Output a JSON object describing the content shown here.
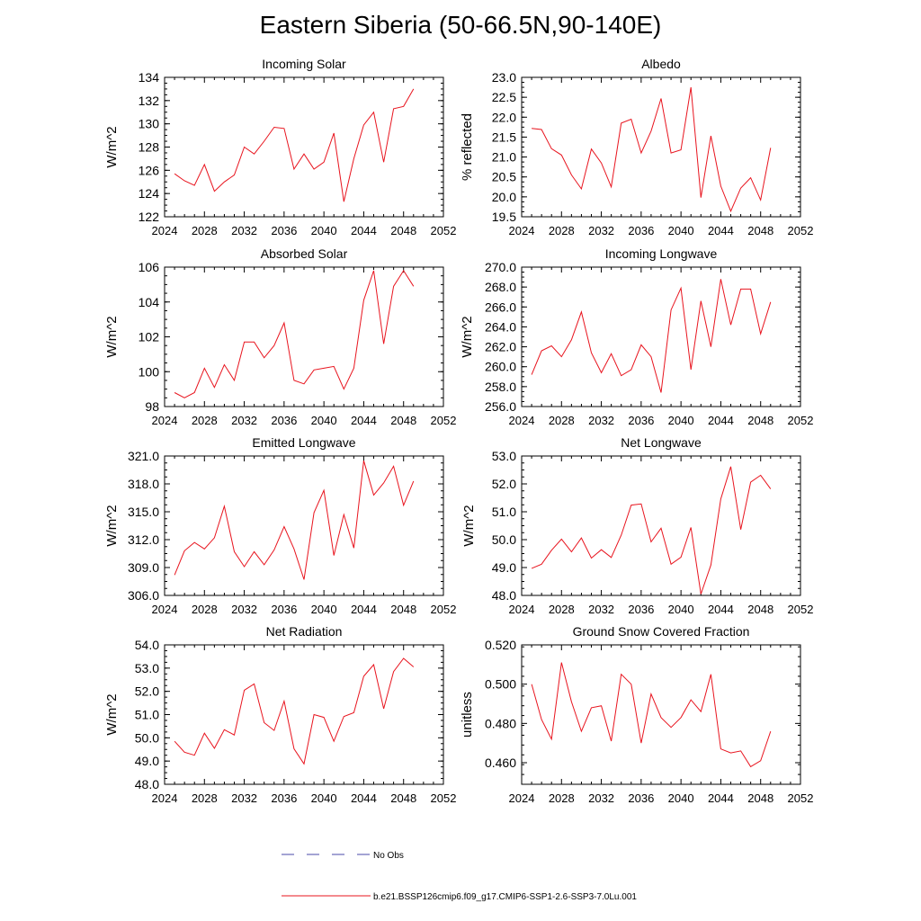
{
  "title": "Eastern Siberia (50-66.5N,90-140E)",
  "legend": {
    "obs_label": "No Obs",
    "model_label": "b.e21.BSSP126cmip6.f09_g17.CMIP6-SSP1-2.6-SSP3-7.0Lu.001",
    "obs_color": "#4a4aa8",
    "model_color": "#e8141e"
  },
  "chart_data": [
    {
      "type": "line",
      "title": "Incoming Solar",
      "ylabel": "W/m^2",
      "xlim": [
        2024,
        2052
      ],
      "ylim": [
        122,
        134
      ],
      "xticks": [
        "2024",
        "2028",
        "2032",
        "2036",
        "2040",
        "2044",
        "2048",
        "2052"
      ],
      "yticks": [
        "122",
        "124",
        "126",
        "128",
        "130",
        "132",
        "134"
      ],
      "series": [
        {
          "x": [
            2025,
            2026,
            2027,
            2028,
            2029,
            2030,
            2031,
            2032,
            2033,
            2034,
            2035,
            2036,
            2037,
            2038,
            2039,
            2040,
            2041,
            2042,
            2043,
            2044,
            2045,
            2046,
            2047,
            2048,
            2049
          ],
          "values": [
            125.7,
            125.1,
            124.7,
            126.5,
            124.2,
            125.0,
            125.6,
            128.0,
            127.4,
            128.5,
            129.7,
            129.6,
            126.1,
            127.4,
            126.1,
            126.7,
            129.2,
            123.3,
            127.0,
            129.9,
            131.0,
            126.7,
            131.3,
            131.5,
            133.0
          ]
        }
      ]
    },
    {
      "type": "line",
      "title": "Albedo",
      "ylabel": "% reflected",
      "xlim": [
        2024,
        2052
      ],
      "ylim": [
        19.5,
        23.0
      ],
      "xticks": [
        "2024",
        "2028",
        "2032",
        "2036",
        "2040",
        "2044",
        "2048",
        "2052"
      ],
      "yticks": [
        "19.5",
        "20.0",
        "20.5",
        "21.0",
        "21.5",
        "22.0",
        "22.5",
        "23.0"
      ],
      "series": [
        {
          "x": [
            2025,
            2026,
            2027,
            2028,
            2029,
            2030,
            2031,
            2032,
            2033,
            2034,
            2035,
            2036,
            2037,
            2038,
            2039,
            2040,
            2041,
            2042,
            2043,
            2044,
            2045,
            2046,
            2047,
            2048,
            2049
          ],
          "values": [
            21.72,
            21.69,
            21.21,
            21.05,
            20.55,
            20.2,
            21.2,
            20.85,
            20.25,
            21.85,
            21.95,
            21.1,
            21.65,
            22.47,
            21.1,
            21.18,
            22.75,
            19.98,
            21.53,
            20.27,
            19.64,
            20.22,
            20.48,
            19.92,
            21.23
          ]
        }
      ]
    },
    {
      "type": "line",
      "title": "Absorbed Solar",
      "ylabel": "W/m^2",
      "xlim": [
        2024,
        2052
      ],
      "ylim": [
        98,
        106
      ],
      "xticks": [
        "2024",
        "2028",
        "2032",
        "2036",
        "2040",
        "2044",
        "2048",
        "2052"
      ],
      "yticks": [
        "98",
        "100",
        "102",
        "104",
        "106"
      ],
      "series": [
        {
          "x": [
            2025,
            2026,
            2027,
            2028,
            2029,
            2030,
            2031,
            2032,
            2033,
            2034,
            2035,
            2036,
            2037,
            2038,
            2039,
            2040,
            2041,
            2042,
            2043,
            2044,
            2045,
            2046,
            2047,
            2048,
            2049
          ],
          "values": [
            98.8,
            98.5,
            98.8,
            100.2,
            99.1,
            100.4,
            99.5,
            101.7,
            101.7,
            100.8,
            101.5,
            102.8,
            99.5,
            99.3,
            100.1,
            100.2,
            100.3,
            99.0,
            100.2,
            104.1,
            105.8,
            101.6,
            104.9,
            105.8,
            104.9
          ]
        }
      ]
    },
    {
      "type": "line",
      "title": "Incoming Longwave",
      "ylabel": "W/m^2",
      "xlim": [
        2024,
        2052
      ],
      "ylim": [
        256.0,
        270.0
      ],
      "xticks": [
        "2024",
        "2028",
        "2032",
        "2036",
        "2040",
        "2044",
        "2048",
        "2052"
      ],
      "yticks": [
        "256.0",
        "258.0",
        "260.0",
        "262.0",
        "264.0",
        "266.0",
        "268.0",
        "270.0"
      ],
      "series": [
        {
          "x": [
            2025,
            2026,
            2027,
            2028,
            2029,
            2030,
            2031,
            2032,
            2033,
            2034,
            2035,
            2036,
            2037,
            2038,
            2039,
            2040,
            2041,
            2042,
            2043,
            2044,
            2045,
            2046,
            2047,
            2048,
            2049
          ],
          "values": [
            259.2,
            261.6,
            262.1,
            261.0,
            262.7,
            265.5,
            261.4,
            259.4,
            261.3,
            259.1,
            259.7,
            262.2,
            261.0,
            257.4,
            265.7,
            267.9,
            259.7,
            266.6,
            262.0,
            268.8,
            264.2,
            267.8,
            267.8,
            263.3,
            266.5
          ]
        }
      ]
    },
    {
      "type": "line",
      "title": "Emitted Longwave",
      "ylabel": "W/m^2",
      "xlim": [
        2024,
        2052
      ],
      "ylim": [
        306.0,
        321.0
      ],
      "xticks": [
        "2024",
        "2028",
        "2032",
        "2036",
        "2040",
        "2044",
        "2048",
        "2052"
      ],
      "yticks": [
        "306.0",
        "309.0",
        "312.0",
        "315.0",
        "318.0",
        "321.0"
      ],
      "series": [
        {
          "x": [
            2025,
            2026,
            2027,
            2028,
            2029,
            2030,
            2031,
            2032,
            2033,
            2034,
            2035,
            2036,
            2037,
            2038,
            2039,
            2040,
            2041,
            2042,
            2043,
            2044,
            2045,
            2046,
            2047,
            2048,
            2049
          ],
          "values": [
            308.2,
            310.8,
            311.7,
            311.0,
            312.2,
            315.6,
            310.7,
            309.1,
            310.7,
            309.3,
            310.9,
            313.4,
            311.0,
            307.7,
            314.9,
            317.3,
            310.3,
            314.7,
            311.1,
            320.5,
            316.8,
            318.1,
            319.9,
            315.7,
            318.3
          ]
        }
      ]
    },
    {
      "type": "line",
      "title": "Net Longwave",
      "ylabel": "W/m^2",
      "xlim": [
        2024,
        2052
      ],
      "ylim": [
        48.0,
        53.0
      ],
      "xticks": [
        "2024",
        "2028",
        "2032",
        "2036",
        "2040",
        "2044",
        "2048",
        "2052"
      ],
      "yticks": [
        "48.0",
        "49.0",
        "50.0",
        "51.0",
        "52.0",
        "53.0"
      ],
      "series": [
        {
          "x": [
            2025,
            2026,
            2027,
            2028,
            2029,
            2030,
            2031,
            2032,
            2033,
            2034,
            2035,
            2036,
            2037,
            2038,
            2039,
            2040,
            2041,
            2042,
            2043,
            2044,
            2045,
            2046,
            2047,
            2048,
            2049
          ],
          "values": [
            48.97,
            49.12,
            49.62,
            50.02,
            49.56,
            50.06,
            49.34,
            49.64,
            49.36,
            50.16,
            51.24,
            51.28,
            49.92,
            50.41,
            49.12,
            49.37,
            50.44,
            48.05,
            49.09,
            51.46,
            52.62,
            50.36,
            52.06,
            52.31,
            51.82
          ]
        }
      ]
    },
    {
      "type": "line",
      "title": "Net Radiation",
      "ylabel": "W/m^2",
      "xlim": [
        2024,
        2052
      ],
      "ylim": [
        48.0,
        54.0
      ],
      "xticks": [
        "2024",
        "2028",
        "2032",
        "2036",
        "2040",
        "2044",
        "2048",
        "2052"
      ],
      "yticks": [
        "48.0",
        "49.0",
        "50.0",
        "51.0",
        "52.0",
        "53.0",
        "54.0"
      ],
      "series": [
        {
          "x": [
            2025,
            2026,
            2027,
            2028,
            2029,
            2030,
            2031,
            2032,
            2033,
            2034,
            2035,
            2036,
            2037,
            2038,
            2039,
            2040,
            2041,
            2042,
            2043,
            2044,
            2045,
            2046,
            2047,
            2048,
            2049
          ],
          "values": [
            49.85,
            49.38,
            49.25,
            50.2,
            49.55,
            50.35,
            50.12,
            52.05,
            52.32,
            50.65,
            50.32,
            51.58,
            49.53,
            48.88,
            51.0,
            50.88,
            49.85,
            50.92,
            51.08,
            52.65,
            53.15,
            51.25,
            52.85,
            53.42,
            53.05
          ]
        }
      ]
    },
    {
      "type": "line",
      "title": "Ground Snow Covered Fraction",
      "ylabel": "unitless",
      "xlim": [
        2024,
        2052
      ],
      "ylim": [
        0.449,
        0.52
      ],
      "xticks": [
        "2024",
        "2028",
        "2032",
        "2036",
        "2040",
        "2044",
        "2048",
        "2052"
      ],
      "yticks": [
        "0.460",
        "0.480",
        "0.500",
        "0.520"
      ],
      "ytick_values": [
        0.46,
        0.48,
        0.5,
        0.52
      ],
      "series": [
        {
          "x": [
            2025,
            2026,
            2027,
            2028,
            2029,
            2030,
            2031,
            2032,
            2033,
            2034,
            2035,
            2036,
            2037,
            2038,
            2039,
            2040,
            2041,
            2042,
            2043,
            2044,
            2045,
            2046,
            2047,
            2048,
            2049
          ],
          "values": [
            0.5,
            0.482,
            0.472,
            0.511,
            0.491,
            0.476,
            0.488,
            0.489,
            0.471,
            0.505,
            0.5,
            0.47,
            0.495,
            0.483,
            0.478,
            0.483,
            0.492,
            0.486,
            0.505,
            0.467,
            0.465,
            0.466,
            0.458,
            0.461,
            0.476
          ]
        }
      ]
    }
  ]
}
